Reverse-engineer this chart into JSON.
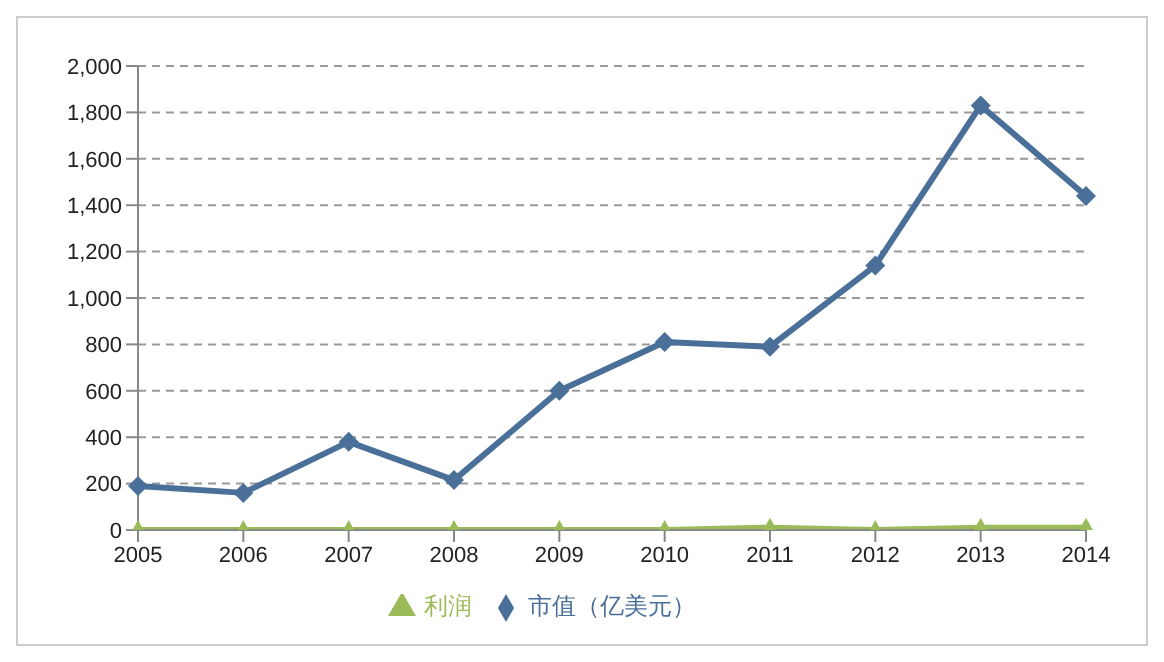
{
  "chart_data": {
    "type": "line",
    "categories": [
      "2005",
      "2006",
      "2007",
      "2008",
      "2009",
      "2010",
      "2011",
      "2012",
      "2013",
      "2014"
    ],
    "series": [
      {
        "name": "市值（亿美元）",
        "color": "#4a7099",
        "marker": "diamond",
        "values": [
          190,
          160,
          380,
          215,
          600,
          810,
          790,
          1140,
          1830,
          1440
        ]
      },
      {
        "name": "利润",
        "color": "#9bbb59",
        "marker": "triangle",
        "values": [
          0,
          0,
          0,
          0,
          0,
          0,
          10,
          0,
          10,
          10
        ]
      }
    ],
    "ylim": [
      0,
      2000
    ],
    "yticks": [
      {
        "value": 0,
        "label": "0"
      },
      {
        "value": 200,
        "label": "200"
      },
      {
        "value": 400,
        "label": "400"
      },
      {
        "value": 600,
        "label": "600"
      },
      {
        "value": 800,
        "label": "800"
      },
      {
        "value": 1000,
        "label": "1,000"
      },
      {
        "value": 1200,
        "label": "1,200"
      },
      {
        "value": 1400,
        "label": "1,400"
      },
      {
        "value": 1600,
        "label": "1,600"
      },
      {
        "value": 1800,
        "label": "1,800"
      },
      {
        "value": 2000,
        "label": "2,000"
      }
    ],
    "grid": "y",
    "legend": "bottom"
  }
}
